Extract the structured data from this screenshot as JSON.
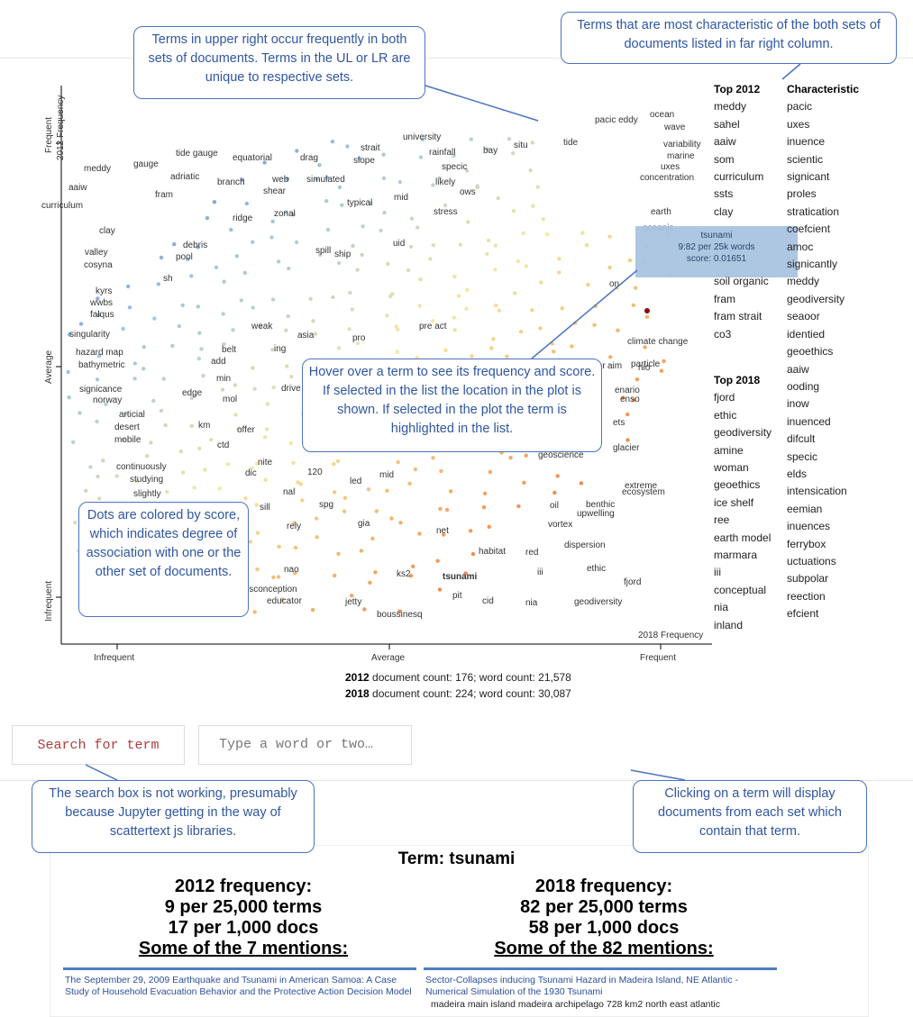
{
  "plot": {
    "y_axis": {
      "top": "Frequent",
      "mid": "Average",
      "bottom": "Infrequent",
      "title": "2012 Frequency"
    },
    "x_axis": {
      "left": "Infrequent",
      "mid": "Average",
      "right": "Frequent",
      "title": "2018 Frequency"
    },
    "colors": {
      "blue_dark": "#3b5ea8",
      "blue_light": "#9cc6e4",
      "yellow": "#f5e9a0",
      "orange": "#f39a56",
      "red": "#d8322c",
      "dark_red": "#8b0a0a"
    },
    "selected_term": "tsunami",
    "labels": [
      "university",
      "pacic eddy",
      "ocean",
      "wave",
      "tide",
      "variability",
      "situ",
      "bay",
      "marine",
      "uxes",
      "concentration",
      "earth",
      "oceanic",
      "rainfall",
      "specic",
      "strait",
      "slope",
      "likely",
      "ows",
      "stress",
      "drag",
      "simulated",
      "mid",
      "typical",
      "web",
      "shear",
      "equatorial",
      "tide gauge",
      "gauge",
      "meddy",
      "adriatic",
      "branch",
      "aaiw",
      "fram",
      "curriculum",
      "ridge",
      "zonal",
      "spill",
      "ship",
      "uid",
      "clay",
      "debris",
      "pool",
      "valley",
      "cosyna",
      "sh",
      "kyrs",
      "wwbs",
      "falqus",
      "singularity",
      "hazard map",
      "bathymetric",
      "weak",
      "belt",
      "add",
      "ing",
      "asia",
      "pro",
      "pre act",
      "min",
      "signicance",
      "norway",
      "edge",
      "mol",
      "drive",
      "articial",
      "desert",
      "mobile",
      "km",
      "ctd",
      "offer",
      "nite",
      "dic",
      "continuously",
      "studying",
      "slightly",
      "nal",
      "120",
      "led",
      "mid",
      "sill",
      "spg",
      "rely",
      "gia",
      "nao",
      "ks2",
      "isconception",
      "educator",
      "jetty",
      "boussinesq",
      "pit",
      "cid",
      "nia",
      "net",
      "habitat",
      "red",
      "oil",
      "vortex",
      "dispersion",
      "iii",
      "ethic",
      "fjord",
      "geodiversity",
      "benthic",
      "upwelling",
      "ecosystem",
      "extreme",
      "geoscience",
      "glacier",
      "climate change",
      "particle",
      "aim",
      "nio",
      "tsunami",
      "ets",
      "enario",
      "enso",
      "on",
      "ower",
      "ce"
    ],
    "tooltip": {
      "term": "tsunami",
      "line1": "9:82 per 25k words",
      "line2": "score: 0.01651"
    }
  },
  "columns": {
    "top2012": {
      "header": "Top 2012",
      "items": [
        "meddy",
        "sahel",
        "aaiw",
        "som",
        "curriculum",
        "ssts",
        "clay",
        "",
        "",
        "",
        "soil organic",
        "fram",
        "fram strait",
        "co3"
      ]
    },
    "top2018": {
      "header": "Top 2018",
      "items": [
        "fjord",
        "ethic",
        "geodiversity",
        "amine",
        "woman",
        "geoethics",
        "ice shelf",
        "ree",
        "earth model",
        "marmara",
        "iii",
        "conceptual",
        "nia",
        "inland"
      ]
    },
    "characteristic": {
      "header": "Characteristic",
      "items": [
        "pacic",
        "uxes",
        "inuence",
        "scientic",
        "signicant",
        "proles",
        "stratication",
        "coefcient",
        "amoc",
        "signicantly",
        "meddy",
        "geodiversity",
        "seaoor",
        "identied",
        "geoethics",
        "aaiw",
        "ooding",
        "inow",
        "inuenced",
        "difcult",
        "specic",
        "elds",
        "intensication",
        "eemian",
        "inuences",
        "ferrybox",
        "uctuations",
        "subpolar",
        "reection",
        "efcient"
      ]
    }
  },
  "counts": {
    "y2012_label": "2012",
    "y2012_text": " document count: 176; word count: 21,578",
    "y2018_label": "2018",
    "y2018_text": " document count: 224; word count: 30,087"
  },
  "search": {
    "button_label": "Search for term",
    "placeholder": "Type a word or two…"
  },
  "callouts": {
    "top_left": "Terms in upper right occur frequently in both sets of documents. Terms in the UL or LR are unique to respective sets.",
    "top_right": "Terms that are most characteristic of the both sets of documents listed in far right column.",
    "hover": "Hover over a term to see its frequency and score. If selected in the list the location in the plot is shown. If selected in the plot the term is highlighted in the list.",
    "dots": "Dots are colored by score, which indicates degree of association with one or the other set of documents.",
    "search": "The search box is not working, presumably because Jupyter getting in the way of scattertext js libraries.",
    "clicking": "Clicking on a term will display documents from each set which contain that term."
  },
  "term_panel": {
    "title": "Term: tsunami",
    "left": {
      "freq_label": "2012 frequency:",
      "per_terms": "9 per 25,000 terms",
      "per_docs": "17 per 1,000 docs",
      "mentions": "Some of the 7 mentions:",
      "doc_title": "The September 29, 2009 Earthquake and Tsunami in American Samoa: A Case Study of Household Evacuation Behavior and the Protective Action Decision Model"
    },
    "right": {
      "freq_label": "2018 frequency:",
      "per_terms": "82 per 25,000 terms",
      "per_docs": "58 per 1,000 docs",
      "mentions": "Some of the 82 mentions:",
      "doc_title": "Sector-Collapses inducing Tsunami Hazard in Madeira Island, NE Atlantic - Numerical Simulation of the 1930 Tsunami",
      "doc_snippet": "madeira main island madeira archipelago 728 km2 north east atlantic"
    }
  }
}
